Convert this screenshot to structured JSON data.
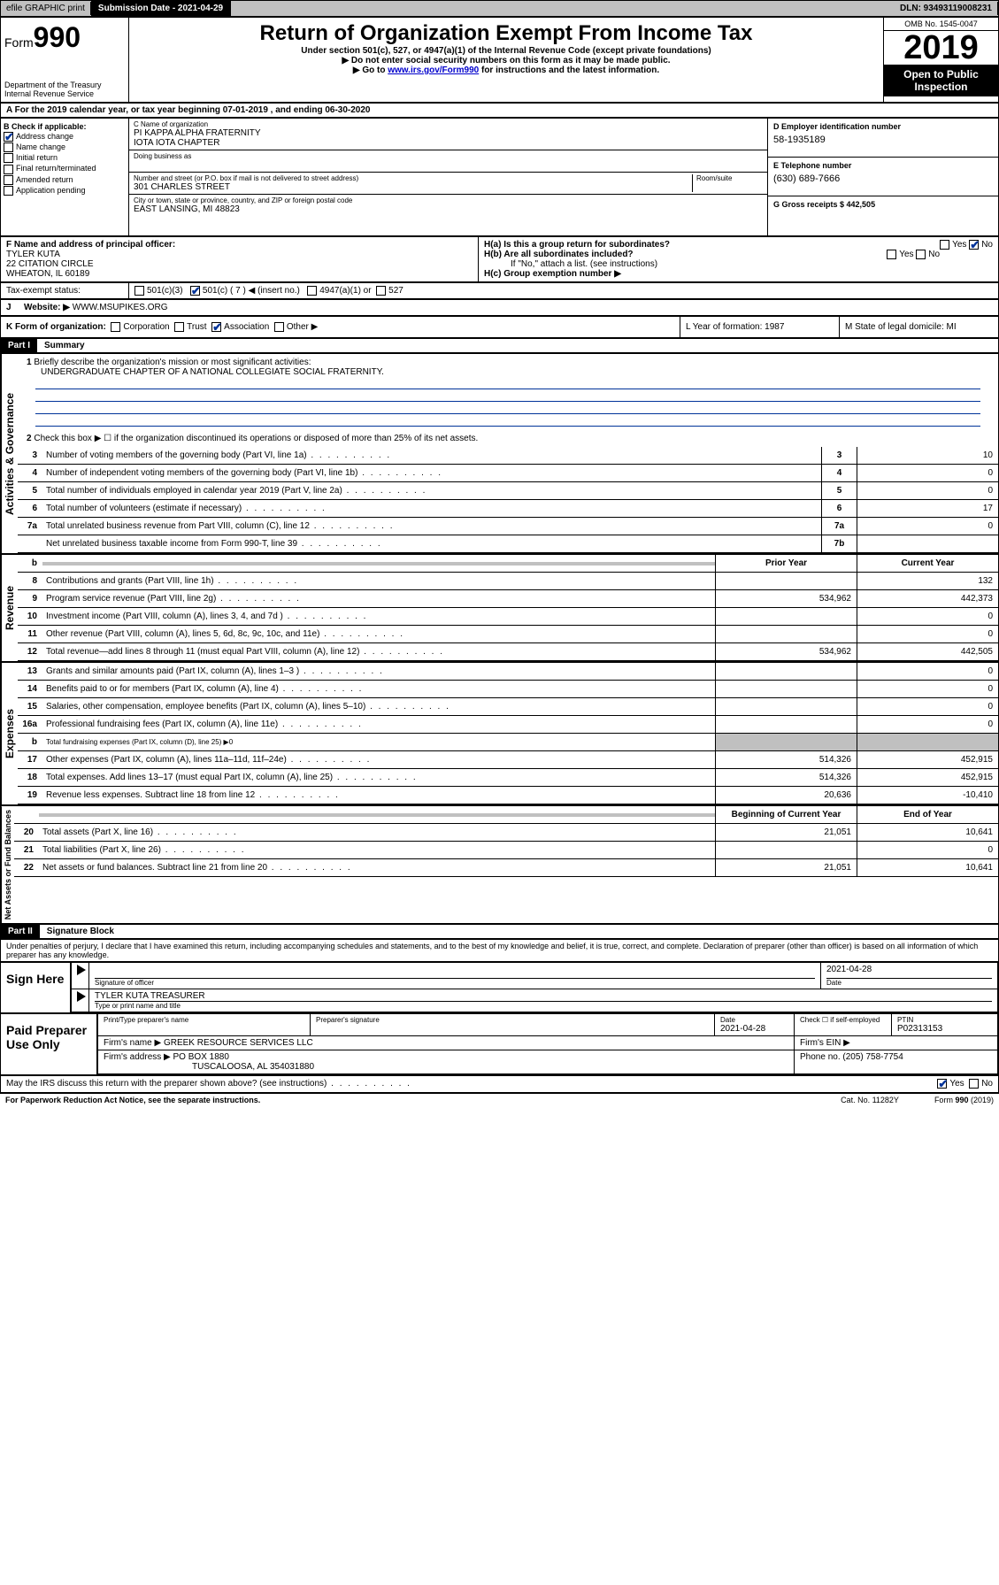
{
  "topbar": {
    "efile": "efile GRAPHIC print",
    "sub_label": "Submission Date - 2021-04-29",
    "dln": "DLN: 93493119008231"
  },
  "header": {
    "form": "Form",
    "num": "990",
    "dept": "Department of the Treasury\nInternal Revenue Service",
    "title": "Return of Organization Exempt From Income Tax",
    "sub1": "Under section 501(c), 527, or 4947(a)(1) of the Internal Revenue Code (except private foundations)",
    "sub2": "▶ Do not enter social security numbers on this form as it may be made public.",
    "sub3_a": "▶ Go to ",
    "sub3_link": "www.irs.gov/Form990",
    "sub3_b": " for instructions and the latest information.",
    "omb": "OMB No. 1545-0047",
    "year": "2019",
    "open": "Open to Public Inspection"
  },
  "row_a": "For the 2019 calendar year, or tax year beginning 07-01-2019    , and ending 06-30-2020",
  "box_b": {
    "label": "B Check if applicable:",
    "items": [
      "Address change",
      "Name change",
      "Initial return",
      "Final return/terminated",
      "Amended return",
      "Application pending"
    ]
  },
  "box_c": {
    "name_label": "C Name of organization",
    "name": "PI KAPPA ALPHA FRATERNITY\nIOTA IOTA CHAPTER",
    "dba_label": "Doing business as",
    "addr_label": "Number and street (or P.O. box if mail is not delivered to street address)",
    "room_label": "Room/suite",
    "addr": "301 CHARLES STREET",
    "city_label": "City or town, state or province, country, and ZIP or foreign postal code",
    "city": "EAST LANSING, MI  48823"
  },
  "box_d": {
    "label": "D Employer identification number",
    "val": "58-1935189"
  },
  "box_e": {
    "label": "E Telephone number",
    "val": "(630) 689-7666"
  },
  "box_g": {
    "label": "G Gross receipts $ 442,505"
  },
  "box_f": {
    "label": "F  Name and address of principal officer:",
    "name": "TYLER KUTA",
    "addr1": "22 CITATION CIRCLE",
    "addr2": "WHEATON, IL  60189"
  },
  "box_h": {
    "a": "H(a)  Is this a group return for subordinates?",
    "b": "H(b)  Are all subordinates included?",
    "b2": "If \"No,\" attach a list. (see instructions)",
    "c": "H(c)  Group exemption number ▶",
    "yes": "Yes",
    "no": "No"
  },
  "row_i": {
    "tax": "Tax-exempt status:",
    "c3": "501(c)(3)",
    "c": "501(c) ( 7 ) ◀ (insert no.)",
    "a1": "4947(a)(1) or",
    "527": "527"
  },
  "row_j": {
    "label": "J",
    "web": "Website: ▶",
    "val": "WWW.MSUPIKES.ORG"
  },
  "row_k": {
    "label": "K Form of organization:",
    "corp": "Corporation",
    "trust": "Trust",
    "assoc": "Association",
    "other": "Other ▶",
    "l": "L Year of formation: 1987",
    "m": "M State of legal domicile: MI"
  },
  "part1": {
    "hdr": "Part I",
    "title": "Summary"
  },
  "summary": {
    "q1": "Briefly describe the organization's mission or most significant activities:",
    "q1v": "UNDERGRADUATE CHAPTER OF A NATIONAL COLLEGIATE SOCIAL FRATERNITY.",
    "q2": "Check this box ▶ ☐  if the organization discontinued its operations or disposed of more than 25% of its net assets.",
    "lines": [
      {
        "n": "3",
        "d": "Number of voting members of the governing body (Part VI, line 1a)",
        "cn": "3",
        "v": "10"
      },
      {
        "n": "4",
        "d": "Number of independent voting members of the governing body (Part VI, line 1b)",
        "cn": "4",
        "v": "0"
      },
      {
        "n": "5",
        "d": "Total number of individuals employed in calendar year 2019 (Part V, line 2a)",
        "cn": "5",
        "v": "0"
      },
      {
        "n": "6",
        "d": "Total number of volunteers (estimate if necessary)",
        "cn": "6",
        "v": "17"
      },
      {
        "n": "7a",
        "d": "Total unrelated business revenue from Part VIII, column (C), line 12",
        "cn": "7a",
        "v": "0"
      },
      {
        "n": "",
        "d": "Net unrelated business taxable income from Form 990-T, line 39",
        "cn": "7b",
        "v": ""
      }
    ]
  },
  "revenue": {
    "hdr_b": "b",
    "hdr_prior": "Prior Year",
    "hdr_curr": "Current Year",
    "lines": [
      {
        "n": "8",
        "d": "Contributions and grants (Part VIII, line 1h)",
        "p": "",
        "c": "132"
      },
      {
        "n": "9",
        "d": "Program service revenue (Part VIII, line 2g)",
        "p": "534,962",
        "c": "442,373"
      },
      {
        "n": "10",
        "d": "Investment income (Part VIII, column (A), lines 3, 4, and 7d )",
        "p": "",
        "c": "0"
      },
      {
        "n": "11",
        "d": "Other revenue (Part VIII, column (A), lines 5, 6d, 8c, 9c, 10c, and 11e)",
        "p": "",
        "c": "0"
      },
      {
        "n": "12",
        "d": "Total revenue—add lines 8 through 11 (must equal Part VIII, column (A), line 12)",
        "p": "534,962",
        "c": "442,505"
      }
    ]
  },
  "expenses": {
    "lines": [
      {
        "n": "13",
        "d": "Grants and similar amounts paid (Part IX, column (A), lines 1–3 )",
        "p": "",
        "c": "0"
      },
      {
        "n": "14",
        "d": "Benefits paid to or for members (Part IX, column (A), line 4)",
        "p": "",
        "c": "0"
      },
      {
        "n": "15",
        "d": "Salaries, other compensation, employee benefits (Part IX, column (A), lines 5–10)",
        "p": "",
        "c": "0"
      },
      {
        "n": "16a",
        "d": "Professional fundraising fees (Part IX, column (A), line 11e)",
        "p": "",
        "c": "0"
      }
    ],
    "line_b": {
      "n": "b",
      "d": "Total fundraising expenses (Part IX, column (D), line 25) ▶0"
    },
    "lines2": [
      {
        "n": "17",
        "d": "Other expenses (Part IX, column (A), lines 11a–11d, 11f–24e)",
        "p": "514,326",
        "c": "452,915"
      },
      {
        "n": "18",
        "d": "Total expenses. Add lines 13–17 (must equal Part IX, column (A), line 25)",
        "p": "514,326",
        "c": "452,915"
      },
      {
        "n": "19",
        "d": "Revenue less expenses. Subtract line 18 from line 12",
        "p": "20,636",
        "c": "-10,410"
      }
    ]
  },
  "netassets": {
    "hdr_prior": "Beginning of Current Year",
    "hdr_curr": "End of Year",
    "lines": [
      {
        "n": "20",
        "d": "Total assets (Part X, line 16)",
        "p": "21,051",
        "c": "10,641"
      },
      {
        "n": "21",
        "d": "Total liabilities (Part X, line 26)",
        "p": "",
        "c": "0"
      },
      {
        "n": "22",
        "d": "Net assets or fund balances. Subtract line 21 from line 20",
        "p": "21,051",
        "c": "10,641"
      }
    ]
  },
  "part2": {
    "hdr": "Part II",
    "title": "Signature Block"
  },
  "sig": {
    "perjury": "Under penalties of perjury, I declare that I have examined this return, including accompanying schedules and statements, and to the best of my knowledge and belief, it is true, correct, and complete. Declaration of preparer (other than officer) is based on all information of which preparer has any knowledge.",
    "sign_here": "Sign Here",
    "sig_officer": "Signature of officer",
    "date1": "2021-04-28",
    "date_lbl": "Date",
    "name_title": "TYLER KUTA  TREASURER",
    "name_title_lbl": "Type or print name and title",
    "paid": "Paid Preparer Use Only",
    "prep_name_lbl": "Print/Type preparer's name",
    "prep_sig_lbl": "Preparer's signature",
    "date2": "2021-04-28",
    "check_lbl": "Check ☐ if self-employed",
    "ptin_lbl": "PTIN",
    "ptin": "P02313153",
    "firm_name_lbl": "Firm's name    ▶",
    "firm_name": "GREEK RESOURCE SERVICES LLC",
    "firm_ein_lbl": "Firm's EIN ▶",
    "firm_addr_lbl": "Firm's address ▶",
    "firm_addr": "PO BOX 1880",
    "firm_addr2": "TUSCALOOSA, AL  354031880",
    "phone_lbl": "Phone no. (205) 758-7754",
    "discuss": "May the IRS discuss this return with the preparer shown above? (see instructions)"
  },
  "footer": {
    "pra": "For Paperwork Reduction Act Notice, see the separate instructions.",
    "cat": "Cat. No. 11282Y",
    "form": "Form 990 (2019)"
  },
  "labels": {
    "gov": "Activities & Governance",
    "rev": "Revenue",
    "exp": "Expenses",
    "net": "Net Assets or Fund Balances"
  }
}
